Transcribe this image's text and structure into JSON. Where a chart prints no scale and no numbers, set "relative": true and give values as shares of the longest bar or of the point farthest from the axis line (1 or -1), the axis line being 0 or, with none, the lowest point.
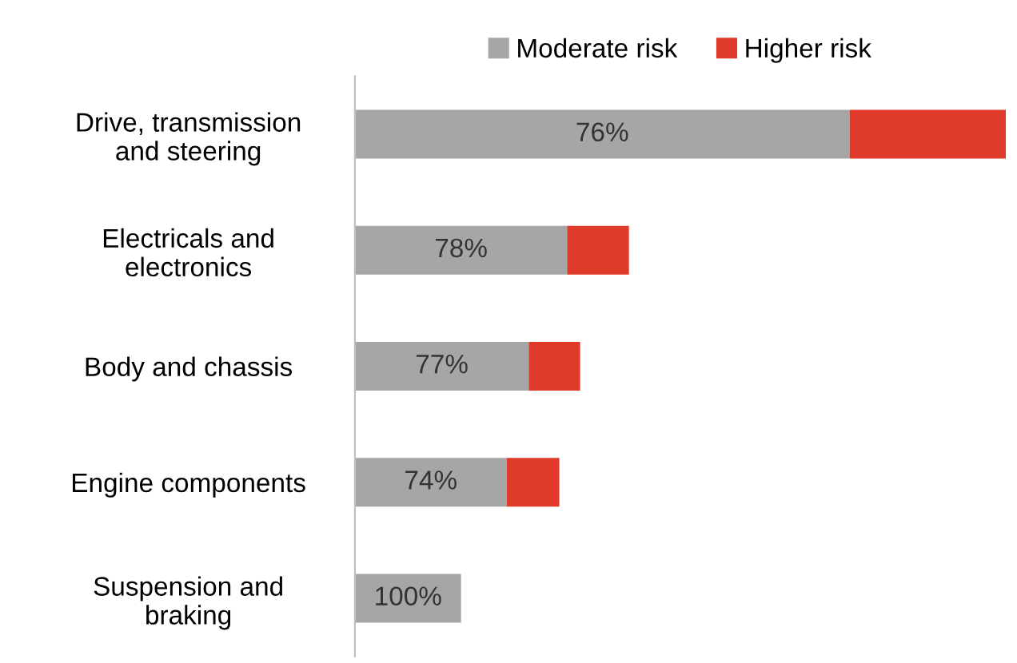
{
  "chart_data": {
    "type": "bar",
    "orientation": "horizontal",
    "stacked": true,
    "relative": true,
    "categories": [
      "Drive, transmission\nand steering",
      "Electricals and\nelectronics",
      "Body and chassis",
      "Engine components",
      "Suspension and\nbraking"
    ],
    "series": [
      {
        "name": "Moderate risk",
        "color": "#a6a6a6",
        "values": [
          0.76,
          0.326,
          0.267,
          0.233,
          0.163
        ]
      },
      {
        "name": "Higher risk",
        "color": "#e03a2a",
        "values": [
          0.24,
          0.095,
          0.079,
          0.081,
          0
        ]
      }
    ],
    "annotations": [
      "76%",
      "78%",
      "77%",
      "74%",
      "100%"
    ],
    "legend": "top",
    "grid": false
  }
}
